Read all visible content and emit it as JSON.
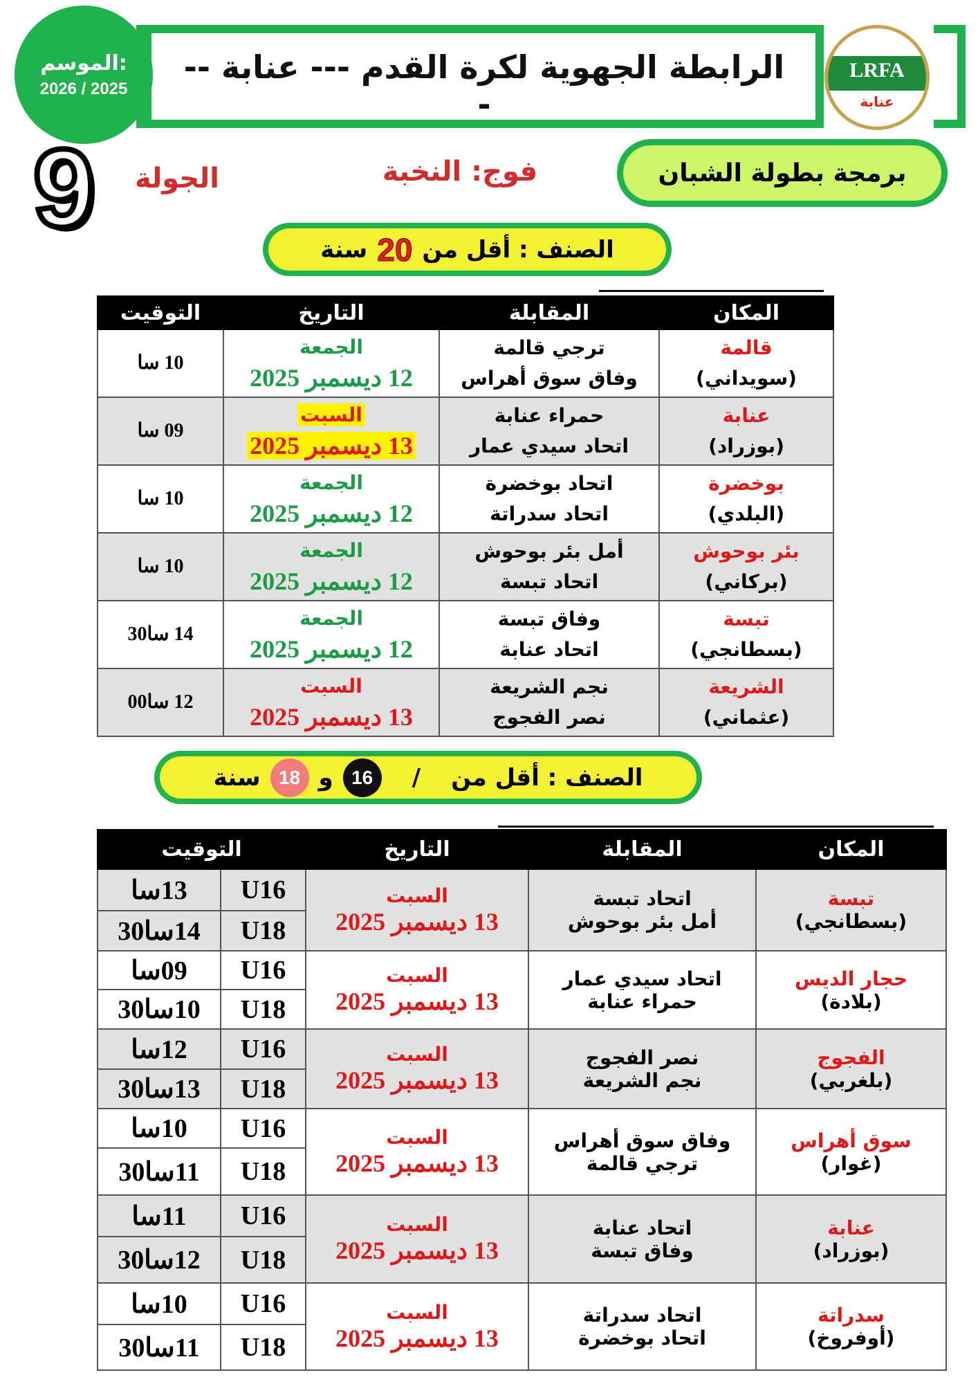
{
  "header": {
    "season_label": "الموسم:",
    "season_value": "2026 / 2025",
    "title": "الرابطة الجهوية  لكرة القدم --- عنابة ---",
    "logo_text": "LRFA",
    "logo_city": "عنابة"
  },
  "round": {
    "number": "9",
    "label": "الجولة"
  },
  "group": "فوج: النخبة",
  "youth_title": "برمجة بطولة الشبان",
  "colors": {
    "green": "#1fb24f",
    "red": "#e01818",
    "date_green": "#1a9c46",
    "yellow": "#f3f132",
    "light_green": "#ccf56a"
  },
  "u20": {
    "category_prefix": "الصنف : أقل من",
    "age": "20",
    "suffix": "سنة",
    "headers": {
      "venue": "المكان",
      "match": "المقابلة",
      "date": "التاريخ",
      "time": "التوقيت"
    },
    "rows": [
      {
        "venue": "قالمة",
        "stadium": "(سويداني)",
        "home": "ترجي قالمة",
        "away": "وفاق سوق أهراس",
        "day": "الجمعة",
        "date": "12 ديسمبر 2025",
        "time": "10 سا",
        "date_color": "green",
        "highlight": false
      },
      {
        "venue": "عنابة",
        "stadium": "(بوزراد)",
        "home": "حمراء عنابة",
        "away": "اتحاد سيدي عمار",
        "day": "السبت",
        "date": "13 ديسمبر 2025",
        "time": "09 سا",
        "date_color": "red",
        "highlight": true
      },
      {
        "venue": "بوخضرة",
        "stadium": "(البلدي)",
        "home": "اتحاد بوخضرة",
        "away": "اتحاد سدراتة",
        "day": "الجمعة",
        "date": "12 ديسمبر 2025",
        "time": "10 سا",
        "date_color": "green",
        "highlight": false
      },
      {
        "venue": "بئر بوحوش",
        "stadium": "(بركاني)",
        "home": "أمل بئر بوحوش",
        "away": "اتحاد تبسة",
        "day": "الجمعة",
        "date": "12 ديسمبر 2025",
        "time": "10 سا",
        "date_color": "green",
        "highlight": false
      },
      {
        "venue": "تبسة",
        "stadium": "(بسطانجي)",
        "home": "وفاق تبسة",
        "away": "اتحاد عنابة",
        "day": "الجمعة",
        "date": "12 ديسمبر 2025",
        "time": "14 سا30",
        "date_color": "green",
        "highlight": false
      },
      {
        "venue": "الشريعة",
        "stadium": "(عثماني)",
        "home": "نجم الشريعة",
        "away": "نصر الفجوج",
        "day": "السبت",
        "date": "13 ديسمبر 2025",
        "time": "12 سا00",
        "date_color": "red",
        "highlight": false
      }
    ]
  },
  "u16u18": {
    "category_prefix": "الصنف : أقل من",
    "slash": "/",
    "age1": "16",
    "conj": "و",
    "age2": "18",
    "suffix": "سنة",
    "headers": {
      "venue": "المكان",
      "match": "المقابلة",
      "date": "التاريخ",
      "time": "التوقيت"
    },
    "rows": [
      {
        "venue": "تبسة",
        "stadium": "(بسطانجي)",
        "home": "اتحاد تبسة",
        "away": "أمل بئر بوحوش",
        "day": "السبت",
        "date": "13 ديسمبر 2025",
        "u16_label": "U16",
        "u16_time": "13سا",
        "u18_label": "U18",
        "u18_time": "14سا30"
      },
      {
        "venue": "حجار الديس",
        "stadium": "(بلادة)",
        "home": "اتحاد سيدي عمار",
        "away": "حمراء عنابة",
        "day": "السبت",
        "date": "13 ديسمبر 2025",
        "u16_label": "U16",
        "u16_time": "09سا",
        "u18_label": "U18",
        "u18_time": "10سا30"
      },
      {
        "venue": "الفجوج",
        "stadium": "(بلغربي)",
        "home": "نصر الفجوج",
        "away": "نجم الشريعة",
        "day": "السبت",
        "date": "13 ديسمبر 2025",
        "u16_label": "U16",
        "u16_time": "12سا",
        "u18_label": "U18",
        "u18_time": "13سا30"
      },
      {
        "venue": "سوق أهراس",
        "stadium": "(غوار)",
        "home": "وفاق سوق أهراس",
        "away": "ترجي قالمة",
        "day": "السبت",
        "date": "13 ديسمبر 2025",
        "u16_label": "U16",
        "u16_time": "10سا",
        "u18_label": "U18",
        "u18_time": "11سا30"
      },
      {
        "venue": "عنابة",
        "stadium": "(بوزراد)",
        "home": "اتحاد عنابة",
        "away": "وفاق تبسة",
        "day": "السبت",
        "date": "13 ديسمبر 2025",
        "u16_label": "U16",
        "u16_time": "11سا",
        "u18_label": "U18",
        "u18_time": "12سا30"
      },
      {
        "venue": "سدراتة",
        "stadium": "(أوفروخ)",
        "home": "اتحاد سدراتة",
        "away": "اتحاد بوخضرة",
        "day": "السبت",
        "date": "13 ديسمبر 2025",
        "u16_label": "U16",
        "u16_time": "10سا",
        "u18_label": "U18",
        "u18_time": "11سا30"
      }
    ]
  }
}
